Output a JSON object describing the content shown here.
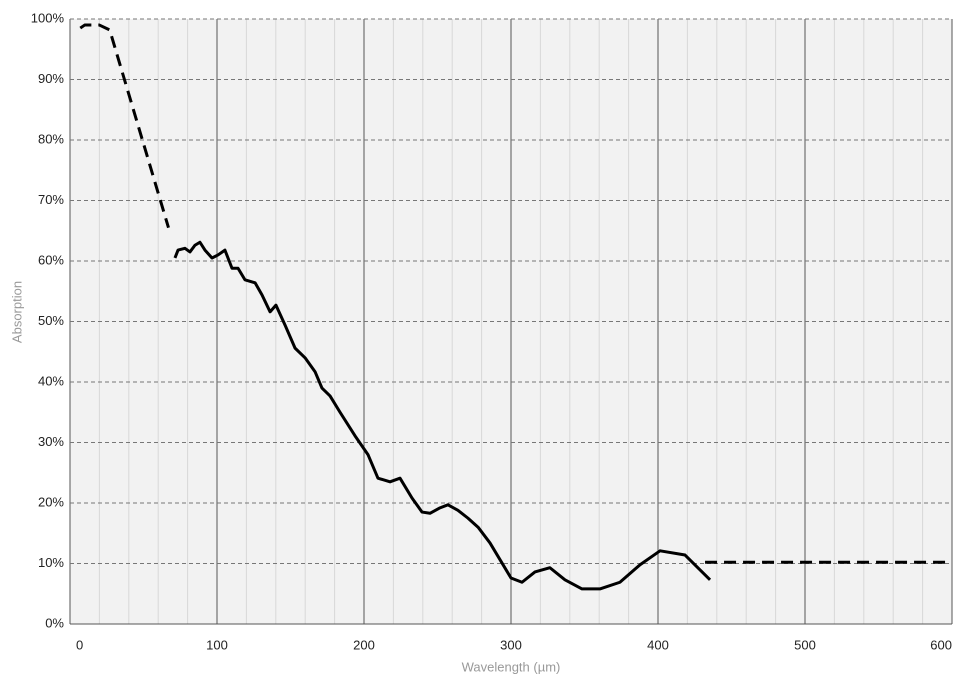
{
  "chart_data": {
    "type": "line",
    "x_label": "Wavelength (µm)",
    "y_label": "Absorption",
    "xlim": [
      0,
      600
    ],
    "xticks": [
      0,
      100,
      200,
      300,
      400,
      500,
      600
    ],
    "xminorticks": [
      20,
      40,
      60,
      80,
      120,
      140,
      160,
      180,
      220,
      240,
      260,
      280,
      320,
      340,
      360,
      380,
      420,
      440,
      460,
      480,
      520,
      540,
      560,
      580
    ],
    "ylim": [
      0,
      100
    ],
    "yticks": [
      {
        "value": 0,
        "label": "0%"
      },
      {
        "value": 10,
        "label": "10%"
      },
      {
        "value": 20,
        "label": "20%"
      },
      {
        "value": 30,
        "label": "30%"
      },
      {
        "value": 40,
        "label": "40%"
      },
      {
        "value": 50,
        "label": "50%"
      },
      {
        "value": 60,
        "label": "60%"
      },
      {
        "value": 70,
        "label": "70%"
      },
      {
        "value": 80,
        "label": "80%"
      },
      {
        "value": 90,
        "label": "90%"
      },
      {
        "value": 100,
        "label": "100%"
      }
    ],
    "grid": true,
    "series": [
      {
        "color": "#000000",
        "style": "dashed",
        "x": [
          7,
          10,
          20,
          27,
          67
        ],
        "values": [
          98.5,
          99,
          99,
          98.2,
          65.5
        ]
      },
      {
        "color": "#000000",
        "style": "solid",
        "x": [
          71.4,
          73.5,
          78.2,
          81.6,
          85.0,
          88.4,
          91.8,
          96.6,
          100.7,
          105.4,
          110.2,
          114.3,
          119.0,
          125.9,
          130.6,
          136.1,
          140.1,
          146.3,
          153.1,
          159.9,
          166.7,
          171.4,
          176.9,
          183.7,
          193.9,
          202.7,
          209.5,
          217.7,
          224.5,
          232.7,
          239.5,
          244.9,
          251.7,
          257.1,
          263.9,
          270.7,
          277.6,
          285.7,
          300.0,
          307.5,
          316.3,
          326.5,
          336.7,
          348.3,
          360.5,
          374.1,
          387.8,
          401.4,
          418.4,
          435.4
        ],
        "values": [
          60.5,
          61.8,
          62.1,
          61.5,
          62.6,
          63.1,
          61.8,
          60.5,
          61.0,
          61.8,
          58.8,
          58.8,
          56.9,
          56.4,
          54.4,
          51.6,
          52.7,
          49.4,
          45.6,
          44.0,
          41.7,
          39.0,
          37.7,
          35.0,
          31.1,
          28.0,
          24.1,
          23.5,
          24.1,
          20.8,
          18.5,
          18.3,
          19.2,
          19.7,
          18.8,
          17.5,
          16.0,
          13.4,
          7.6,
          6.9,
          8.6,
          9.3,
          7.3,
          5.8,
          5.8,
          6.9,
          9.8,
          12.1,
          11.4,
          7.3
        ]
      },
      {
        "color": "#000000",
        "style": "dashed",
        "x": [
          432,
          600
        ],
        "values": [
          10.2,
          10.2
        ]
      }
    ]
  }
}
